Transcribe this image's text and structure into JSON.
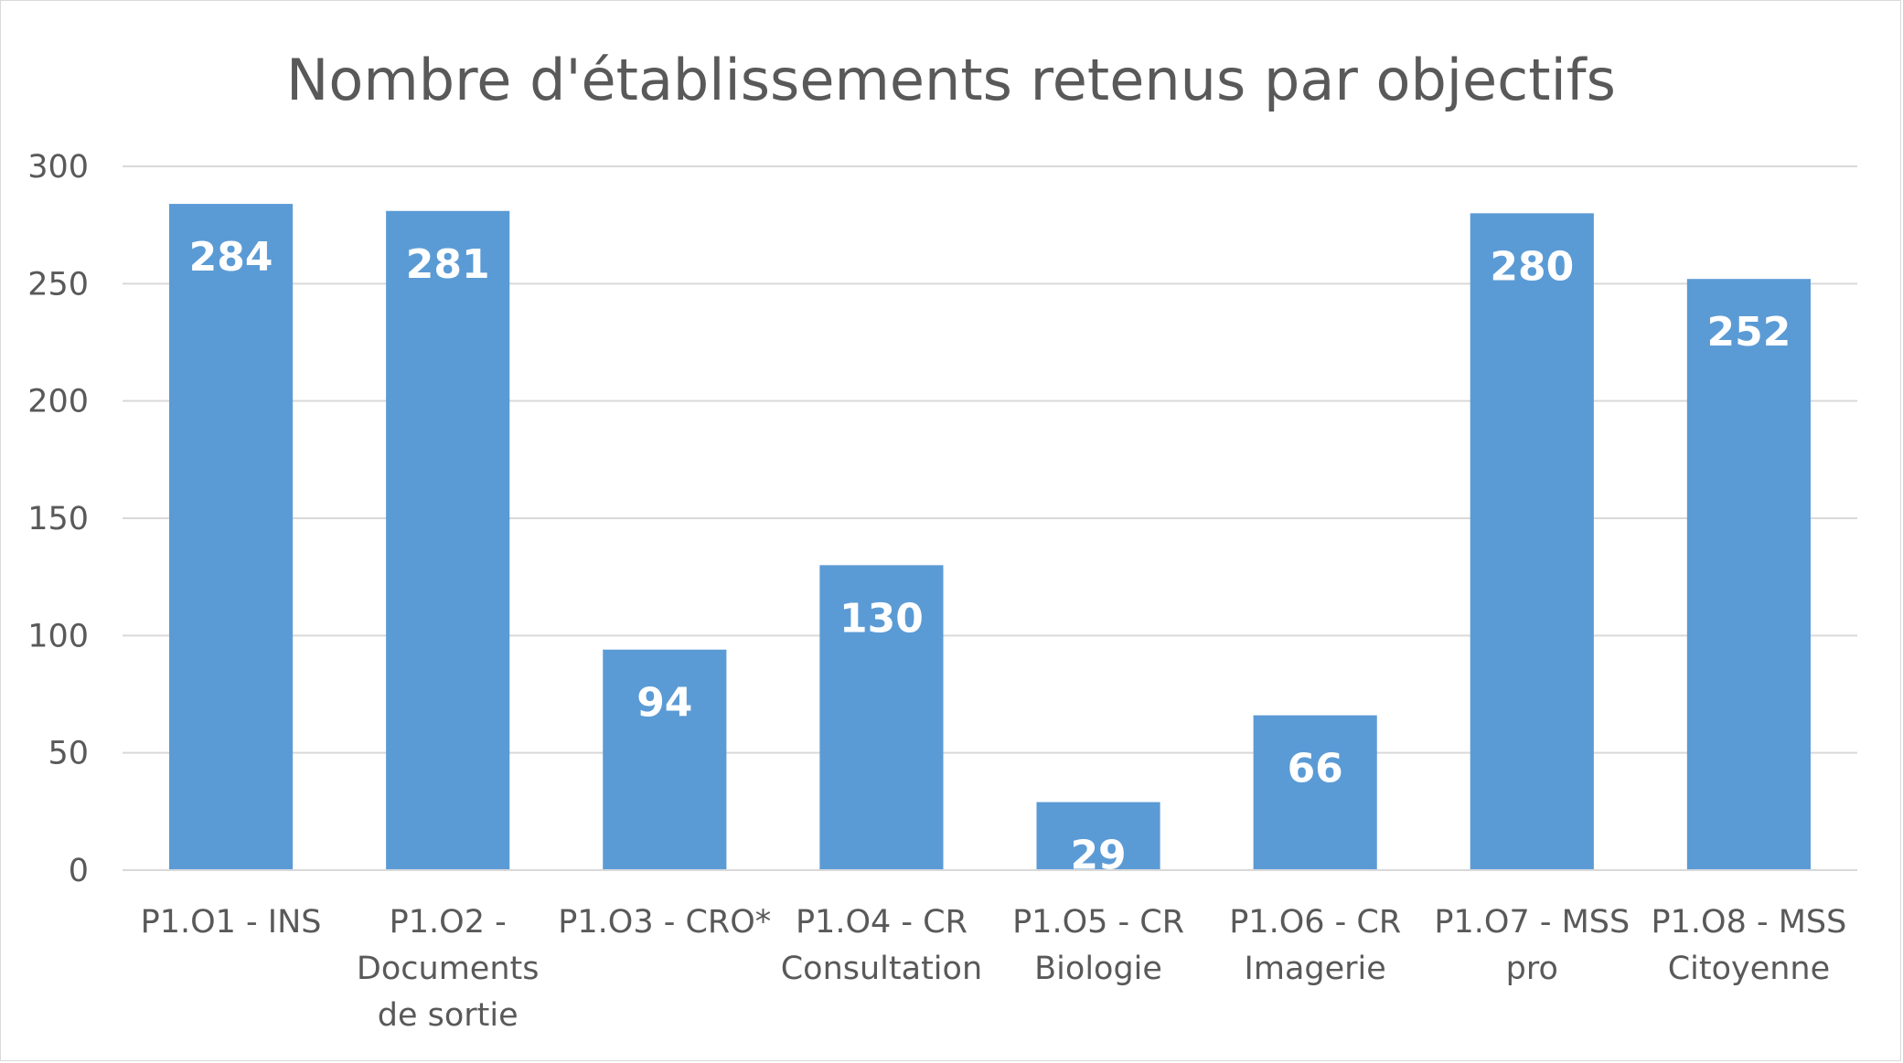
{
  "chart_data": {
    "type": "bar",
    "title": "Nombre d'établissements retenus par objectifs",
    "xlabel": "",
    "ylabel": "",
    "categories": [
      [
        "P1.O1 - INS"
      ],
      [
        "P1.O2 -",
        "Documents",
        "de sortie"
      ],
      [
        "P1.O3 - CRO*"
      ],
      [
        "P1.O4 - CR",
        "Consultation"
      ],
      [
        "P1.O5 - CR",
        "Biologie"
      ],
      [
        "P1.O6 - CR",
        "Imagerie"
      ],
      [
        "P1.O7 - MSS",
        "pro"
      ],
      [
        "P1.O8 - MSS",
        "Citoyenne"
      ]
    ],
    "values": [
      284,
      281,
      94,
      130,
      29,
      66,
      280,
      252
    ],
    "data_labels": [
      "284",
      "281",
      "94",
      "130",
      "29",
      "66",
      "280",
      "252"
    ],
    "ylim": [
      0,
      300
    ],
    "yticks": [
      "0",
      "50",
      "100",
      "150",
      "200",
      "250",
      "300"
    ],
    "grid": true,
    "legend": "none",
    "bar_color": "#5b9bd5"
  }
}
